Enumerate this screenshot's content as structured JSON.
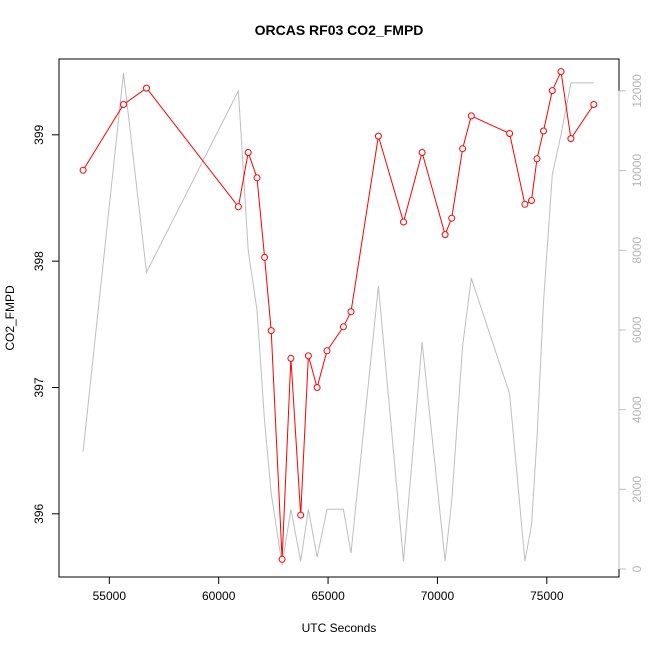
{
  "chart_data": {
    "type": "line",
    "title": "ORCAS RF03 CO2_FMPD",
    "xlabel": "UTC Seconds",
    "ylabel": "CO2_FMPD",
    "xlim": [
      52700,
      78300
    ],
    "ylim": [
      395.5,
      399.6
    ],
    "y2lim": [
      -200,
      12800
    ],
    "x_ticks": [
      55000,
      60000,
      65000,
      70000,
      75000
    ],
    "x_tick_labels": [
      "55000",
      "60000",
      "65000",
      "70000",
      "75000"
    ],
    "y_ticks": [
      396,
      397,
      398,
      399
    ],
    "y_tick_labels": [
      "396",
      "397",
      "398",
      "399"
    ],
    "y2_ticks": [
      0,
      2000,
      4000,
      6000,
      8000,
      10000,
      12000
    ],
    "y2_tick_labels": [
      "0",
      "2000",
      "4000",
      "6000",
      "8000",
      "10000",
      "12000"
    ],
    "grid": false,
    "series": [
      {
        "axis": "left",
        "color": "#ff0000",
        "markers": "open-circle",
        "x": [
          53800,
          55650,
          56700,
          60900,
          61350,
          61750,
          62100,
          62400,
          62900,
          63300,
          63750,
          64100,
          64500,
          64950,
          65700,
          66050,
          67300,
          68450,
          69300,
          70350,
          70650,
          71150,
          71550,
          73300,
          74000,
          74300,
          74550,
          74850,
          75250,
          75650,
          76100,
          77150
        ],
        "y": [
          398.72,
          399.24,
          399.37,
          398.43,
          398.86,
          398.66,
          398.03,
          397.45,
          395.64,
          397.23,
          395.99,
          397.25,
          397.0,
          397.29,
          397.48,
          397.6,
          398.99,
          398.31,
          398.86,
          398.21,
          398.34,
          398.89,
          399.15,
          399.01,
          398.45,
          398.48,
          398.81,
          399.03,
          399.35,
          399.5,
          398.97,
          399.24
        ]
      },
      {
        "axis": "right",
        "color": "#bebebe",
        "markers": "none",
        "x": [
          53800,
          55650,
          56700,
          60900,
          61350,
          61750,
          62100,
          62400,
          62900,
          63300,
          63750,
          64100,
          64500,
          64950,
          65700,
          66050,
          67300,
          68450,
          69300,
          70350,
          70650,
          71150,
          71550,
          73300,
          74000,
          74300,
          74550,
          74850,
          75250,
          75650,
          76100,
          77150
        ],
        "y": [
          2950,
          12450,
          7450,
          12000,
          8000,
          6500,
          3700,
          1900,
          100,
          1500,
          200,
          1500,
          300,
          1500,
          1500,
          400,
          7100,
          200,
          5700,
          200,
          1700,
          5600,
          7300,
          4400,
          200,
          1100,
          3300,
          6700,
          9900,
          10900,
          12200,
          12200
        ]
      }
    ]
  }
}
